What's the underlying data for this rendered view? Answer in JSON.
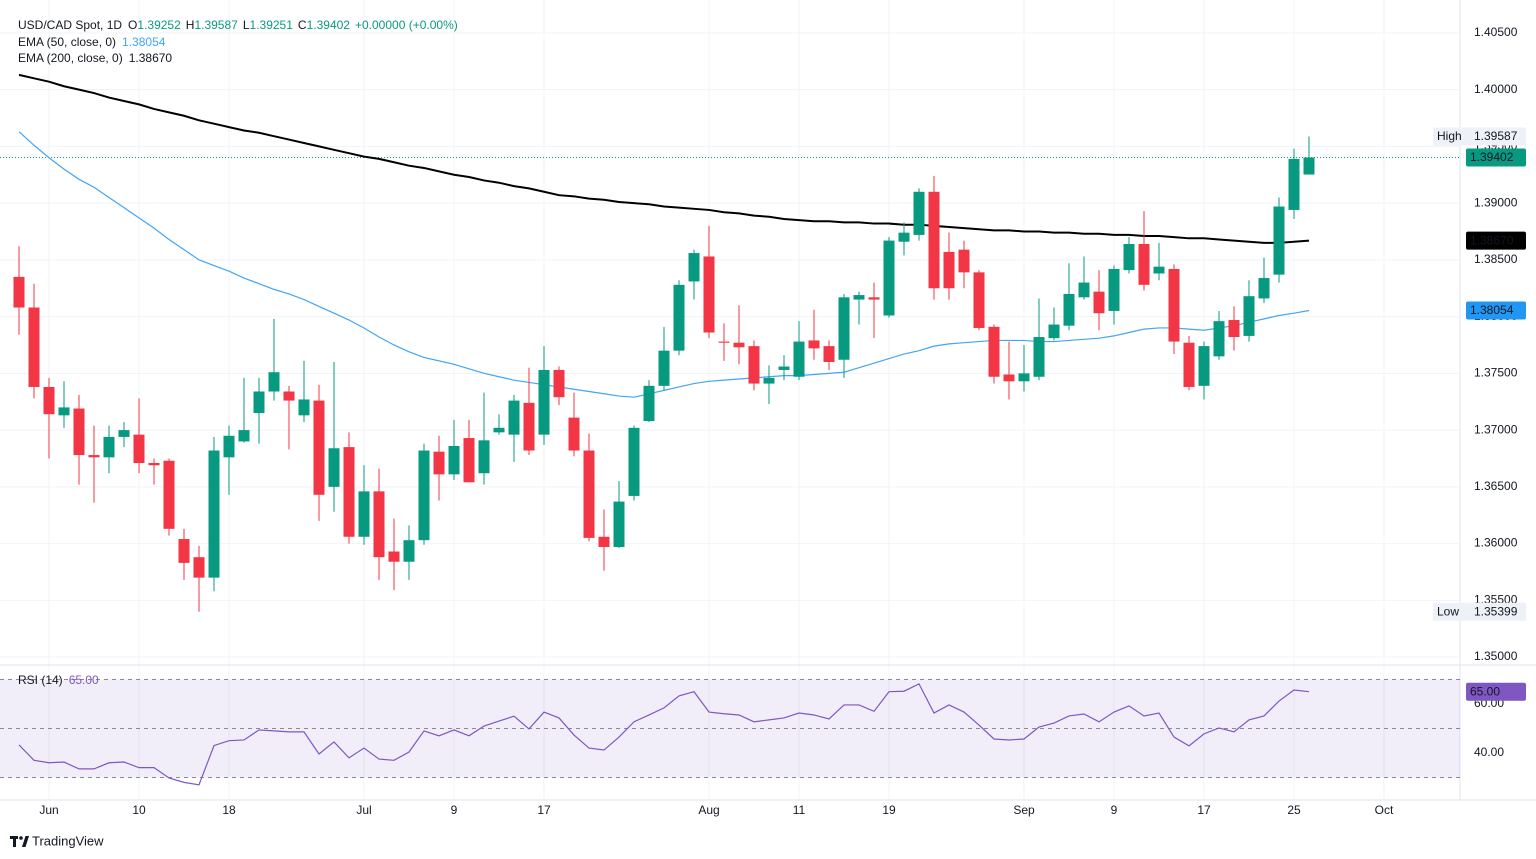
{
  "chart_data": [
    {
      "type": "candlestick",
      "symbol": "USD/CAD Spot, 1D",
      "ohlc_labels": [
        "O",
        "H",
        "L",
        "C"
      ],
      "change": "+0.00000 (+0.00%)",
      "high_label": "High",
      "low_label": "Low",
      "colors": {
        "up": "#089981",
        "down": "#f23645"
      },
      "categories": [
        null,
        null,
        "Jun",
        null,
        null,
        null,
        null,
        null,
        "10",
        null,
        null,
        null,
        null,
        null,
        "18",
        null,
        null,
        null,
        null,
        null,
        null,
        null,
        null,
        "Jul",
        null,
        null,
        null,
        null,
        null,
        "9",
        null,
        null,
        null,
        null,
        null,
        "17",
        null,
        null,
        null,
        null,
        null,
        null,
        null,
        null,
        null,
        null,
        "Aug",
        null,
        null,
        null,
        null,
        null,
        "11",
        null,
        null,
        null,
        null,
        null,
        "19",
        null,
        null,
        null,
        null,
        null,
        null,
        null,
        null,
        "Sep",
        null,
        null,
        null,
        null,
        null,
        "9",
        null,
        null,
        null,
        null,
        null,
        "17",
        null,
        null,
        null,
        null,
        null,
        "25",
        null,
        null,
        null,
        null,
        null,
        "Oct"
      ],
      "open": [
        1.3835,
        1.3808,
        1.3738,
        1.3713,
        1.3719,
        1.3678,
        1.3676,
        1.3694,
        1.3696,
        1.3671,
        1.3673,
        1.3604,
        1.3588,
        1.357,
        1.3676,
        1.369,
        1.3715,
        1.3734,
        1.3734,
        1.3713,
        1.3726,
        1.365,
        1.3685,
        1.3606,
        1.3646,
        1.3593,
        1.3584,
        1.3603,
        1.3681,
        1.3661,
        1.3693,
        1.3662,
        1.3698,
        1.3696,
        1.3724,
        1.3696,
        1.3753,
        1.3711,
        1.3682,
        1.3606,
        1.3597,
        1.3642,
        1.3708,
        1.3739,
        1.377,
        1.3831,
        1.3853,
        1.3778,
        1.3777,
        1.3774,
        1.3741,
        1.3753,
        1.3747,
        1.3779,
        1.3774,
        1.3762,
        1.3815,
        1.3817,
        1.3801,
        1.3866,
        1.3872,
        1.391,
        1.3857,
        1.3859,
        1.3839,
        1.3791,
        1.3749,
        1.3743,
        1.3747,
        1.3781,
        1.3792,
        1.3817,
        1.3822,
        1.3805,
        1.3841,
        1.3864,
        1.3838,
        1.3842,
        1.3777,
        1.3739,
        1.3765,
        1.3797,
        1.3783,
        1.3816,
        1.3837,
        1.3894,
        1.39252,
        null,
        null,
        null,
        null,
        null
      ],
      "high": [
        1.3862,
        1.3829,
        1.3746,
        1.3743,
        1.3731,
        1.3704,
        1.3704,
        1.3707,
        1.3728,
        1.3675,
        1.3675,
        1.3613,
        1.3598,
        1.3694,
        1.3704,
        1.3746,
        1.3746,
        1.3798,
        1.3739,
        1.3761,
        1.374,
        1.376,
        1.3698,
        1.3669,
        1.3666,
        1.3622,
        1.3616,
        1.3688,
        1.3695,
        1.3709,
        1.3709,
        1.3733,
        1.3714,
        1.3731,
        1.3755,
        1.3774,
        1.3756,
        1.3733,
        1.3697,
        1.363,
        1.3655,
        1.3704,
        1.3744,
        1.3791,
        1.3832,
        1.3859,
        1.388,
        1.3794,
        1.381,
        1.3779,
        1.3757,
        1.3766,
        1.3796,
        1.3806,
        1.3779,
        1.382,
        1.3822,
        1.383,
        1.387,
        1.3883,
        1.3913,
        1.3924,
        1.3874,
        1.3867,
        1.3841,
        1.3793,
        1.3778,
        1.3775,
        1.3816,
        1.3808,
        1.3847,
        1.3853,
        1.3841,
        1.3845,
        1.387,
        1.3893,
        1.3865,
        1.3846,
        1.3783,
        1.3778,
        1.3805,
        1.3809,
        1.3832,
        1.3852,
        1.3905,
        1.3948,
        1.39587,
        null,
        null,
        null,
        null,
        null
      ],
      "low": [
        1.3784,
        1.3728,
        1.3675,
        1.3702,
        1.3652,
        1.3636,
        1.3662,
        1.3685,
        1.3662,
        1.3652,
        1.3607,
        1.3568,
        1.35399,
        1.3558,
        1.3643,
        1.3689,
        1.3688,
        1.3726,
        1.3683,
        1.3707,
        1.362,
        1.3628,
        1.36,
        1.3599,
        1.3568,
        1.3559,
        1.3568,
        1.3599,
        1.3638,
        1.3656,
        1.3654,
        1.3652,
        1.3696,
        1.3672,
        1.3678,
        1.3687,
        1.3722,
        1.3677,
        1.3602,
        1.3576,
        1.3596,
        1.3638,
        1.3707,
        1.3735,
        1.3766,
        1.3815,
        1.3781,
        1.3761,
        1.3758,
        1.3735,
        1.3723,
        1.3744,
        1.3744,
        1.3762,
        1.3753,
        1.3746,
        1.3793,
        1.3781,
        1.3799,
        1.3854,
        1.3867,
        1.3815,
        1.3815,
        1.3825,
        1.3788,
        1.3741,
        1.3727,
        1.3734,
        1.3744,
        1.3779,
        1.3788,
        1.3815,
        1.3788,
        1.3793,
        1.3838,
        1.3823,
        1.3832,
        1.3767,
        1.3735,
        1.3727,
        1.3762,
        1.377,
        1.3778,
        1.3812,
        1.383,
        1.3886,
        1.39251,
        null,
        null,
        null,
        null,
        null
      ],
      "close": [
        1.3808,
        1.3738,
        1.3714,
        1.372,
        1.3678,
        1.3676,
        1.3694,
        1.37,
        1.3671,
        1.3669,
        1.3613,
        1.3583,
        1.357,
        1.3682,
        1.3695,
        1.37,
        1.3734,
        1.3751,
        1.3726,
        1.3727,
        1.3643,
        1.3684,
        1.3606,
        1.3646,
        1.3588,
        1.3584,
        1.3603,
        1.3682,
        1.3661,
        1.3686,
        1.3654,
        1.3691,
        1.3702,
        1.3726,
        1.3682,
        1.3753,
        1.3729,
        1.3682,
        1.3605,
        1.3597,
        1.3637,
        1.3702,
        1.3739,
        1.377,
        1.3828,
        1.3856,
        1.3786,
        1.3777,
        1.3773,
        1.3741,
        1.3746,
        1.3756,
        1.3778,
        1.3772,
        1.376,
        1.3817,
        1.3819,
        1.3815,
        1.3867,
        1.3874,
        1.391,
        1.3825,
        1.3825,
        1.3839,
        1.379,
        1.3747,
        1.3743,
        1.375,
        1.3782,
        1.3793,
        1.382,
        1.383,
        1.3803,
        1.3842,
        1.3864,
        1.3828,
        1.3844,
        1.3778,
        1.3738,
        1.3774,
        1.3796,
        1.3782,
        1.3818,
        1.3834,
        1.3897,
        1.3939,
        1.39402,
        null,
        null,
        null,
        null,
        null
      ],
      "series": [
        {
          "name": "EMA (50, close, 0)",
          "color": "#42a5f5",
          "last_label": "1.38054",
          "values": [
            1.3963,
            1.3951,
            1.394,
            1.393,
            1.3921,
            1.3914,
            1.3905,
            1.3896,
            1.3887,
            1.3878,
            1.3868,
            1.3859,
            1.385,
            1.3845,
            1.384,
            1.3834,
            1.3829,
            1.3824,
            1.382,
            1.3815,
            1.3809,
            1.3803,
            1.3797,
            1.379,
            1.3782,
            1.3775,
            1.3769,
            1.3764,
            1.3761,
            1.3758,
            1.3754,
            1.375,
            1.3747,
            1.3744,
            1.3742,
            1.374,
            1.3738,
            1.3736,
            1.3734,
            1.3732,
            1.373,
            1.3729,
            1.3732,
            1.3735,
            1.3738,
            1.3741,
            1.3743,
            1.3744,
            1.3745,
            1.3746,
            1.3747,
            1.3748,
            1.3748,
            1.3749,
            1.375,
            1.3751,
            1.3755,
            1.3759,
            1.3763,
            1.3767,
            1.377,
            1.3774,
            1.3776,
            1.3777,
            1.3778,
            1.3779,
            1.3779,
            1.3779,
            1.3778,
            1.3778,
            1.3779,
            1.378,
            1.3781,
            1.3783,
            1.3786,
            1.3789,
            1.379,
            1.379,
            1.3789,
            1.3788,
            1.379,
            1.3792,
            1.3795,
            1.3798,
            1.3801,
            1.3803,
            1.38054,
            null,
            null,
            null,
            null,
            null
          ]
        },
        {
          "name": "EMA (200, close, 0)",
          "color": "#000000",
          "last_label": "1.38670",
          "values": [
            1.4013,
            1.401,
            1.4007,
            1.4003,
            1.4,
            1.3997,
            1.3993,
            1.399,
            1.3987,
            1.3983,
            1.398,
            1.3977,
            1.3973,
            1.397,
            1.3967,
            1.3964,
            1.3962,
            1.3959,
            1.3956,
            1.3953,
            1.395,
            1.3947,
            1.3944,
            1.3941,
            1.3939,
            1.3936,
            1.3933,
            1.3931,
            1.3928,
            1.3925,
            1.3923,
            1.392,
            1.3918,
            1.3915,
            1.3913,
            1.391,
            1.3907,
            1.3906,
            1.3904,
            1.3903,
            1.3901,
            1.39,
            1.3899,
            1.3897,
            1.3896,
            1.3895,
            1.3894,
            1.3892,
            1.3891,
            1.3889,
            1.3888,
            1.3886,
            1.3885,
            1.3884,
            1.3884,
            1.3883,
            1.3883,
            1.3882,
            1.3882,
            1.3881,
            1.3881,
            1.388,
            1.3879,
            1.3878,
            1.3877,
            1.3876,
            1.3876,
            1.3875,
            1.3875,
            1.3874,
            1.3874,
            1.3873,
            1.3873,
            1.3872,
            1.3872,
            1.3871,
            1.3871,
            1.387,
            1.3869,
            1.3869,
            1.3868,
            1.3867,
            1.3866,
            1.3865,
            1.3865,
            1.3866,
            1.3867,
            null,
            null,
            null,
            null,
            null
          ]
        }
      ],
      "ylim": [
        1.3493,
        1.4079
      ],
      "yticks": [
        {
          "value": 1.35,
          "label": "1.35000"
        },
        {
          "value": 1.355,
          "label": "1.35500"
        },
        {
          "value": 1.36,
          "label": "1.36000"
        },
        {
          "value": 1.365,
          "label": "1.36500"
        },
        {
          "value": 1.37,
          "label": "1.37000"
        },
        {
          "value": 1.375,
          "label": "1.37500"
        },
        {
          "value": 1.38,
          "label": "1.38000"
        },
        {
          "value": 1.385,
          "label": "1.38500"
        },
        {
          "value": 1.39,
          "label": "1.39000"
        },
        {
          "value": 1.395,
          "label": "1.39500"
        },
        {
          "value": 1.4,
          "label": "1.40000"
        },
        {
          "value": 1.405,
          "label": "1.40500"
        }
      ],
      "grid": true
    },
    {
      "type": "line",
      "name": "RSI (14)",
      "color": "#7e57c2",
      "last_label": "65.00",
      "values": [
        43.3,
        37,
        36,
        36.3,
        33.5,
        33.5,
        36,
        36.3,
        34,
        34,
        29.8,
        28,
        27,
        43,
        45,
        45.3,
        49.4,
        49,
        48.6,
        48.6,
        39.6,
        44.5,
        38,
        42,
        37.5,
        37,
        40.4,
        49,
        47,
        49.4,
        47,
        51,
        53,
        55,
        49.8,
        56.7,
        54.3,
        47.3,
        42,
        41.2,
        46.5,
        52.7,
        55.5,
        58.4,
        63.3,
        65,
        56.7,
        56,
        55.5,
        52.7,
        53.5,
        54.3,
        56.3,
        55.5,
        53.9,
        59.6,
        59.6,
        57,
        65,
        65.2,
        68.2,
        56.3,
        59.6,
        56.7,
        51.4,
        45.7,
        45.3,
        45.7,
        50.6,
        52.2,
        55.1,
        55.9,
        52.7,
        56.7,
        59.2,
        55.1,
        56.3,
        46.5,
        42.9,
        47.8,
        50.2,
        48.6,
        53.5,
        55.1,
        61.2,
        65.7,
        65,
        null,
        null,
        null,
        null,
        null
      ],
      "levels": [
        30,
        50,
        70
      ],
      "ylim": [
        20.8,
        75.9
      ],
      "yticks": [
        {
          "value": 40,
          "label": "40.00"
        },
        {
          "value": 60,
          "label": "60.00"
        }
      ]
    }
  ],
  "footer": {
    "brand": "TradingView"
  }
}
